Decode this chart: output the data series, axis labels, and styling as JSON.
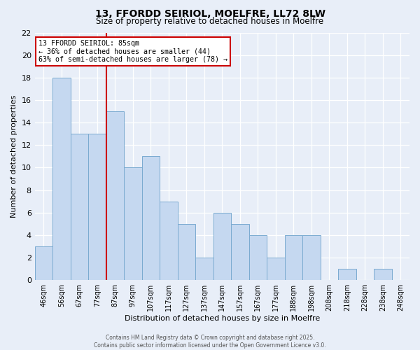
{
  "title": "13, FFORDD SEIRIOL, MOELFRE, LL72 8LW",
  "subtitle": "Size of property relative to detached houses in Moelfre",
  "xlabel": "Distribution of detached houses by size in Moelfre",
  "ylabel": "Number of detached properties",
  "footer_line1": "Contains HM Land Registry data © Crown copyright and database right 2025.",
  "footer_line2": "Contains public sector information licensed under the Open Government Licence v3.0.",
  "bin_labels": [
    "46sqm",
    "56sqm",
    "67sqm",
    "77sqm",
    "87sqm",
    "97sqm",
    "107sqm",
    "117sqm",
    "127sqm",
    "137sqm",
    "147sqm",
    "157sqm",
    "167sqm",
    "177sqm",
    "188sqm",
    "198sqm",
    "208sqm",
    "218sqm",
    "228sqm",
    "238sqm",
    "248sqm"
  ],
  "counts": [
    3,
    18,
    13,
    13,
    15,
    10,
    11,
    7,
    5,
    2,
    6,
    5,
    4,
    2,
    4,
    4,
    0,
    1,
    0,
    1,
    0
  ],
  "annotation_title": "13 FFORDD SEIRIOL: 85sqm",
  "annotation_line2": "← 36% of detached houses are smaller (44)",
  "annotation_line3": "63% of semi-detached houses are larger (78) →",
  "bar_color": "#c5d8f0",
  "bar_edge_color": "#7aaad0",
  "vline_color": "#cc0000",
  "annotation_box_color": "#ffffff",
  "annotation_box_edge": "#cc0000",
  "ylim": [
    0,
    22
  ],
  "yticks": [
    0,
    2,
    4,
    6,
    8,
    10,
    12,
    14,
    16,
    18,
    20,
    22
  ],
  "background_color": "#e8eef8",
  "grid_color": "#ffffff",
  "vline_position": 4
}
